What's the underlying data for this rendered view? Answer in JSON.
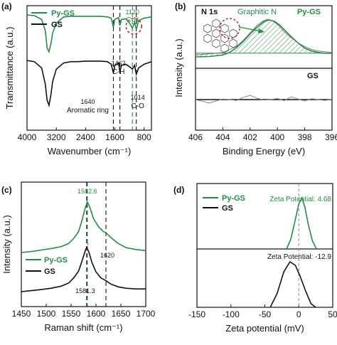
{
  "colors": {
    "pygs": "#2a8a4a",
    "gs": "#111111",
    "dashed_grey": "#6f6f6f",
    "red_marker": "#b02a2a"
  },
  "chart_data": [
    {
      "id": "a",
      "panel_label": "(a)",
      "type": "line",
      "xlabel": "Wavenumber (cm⁻¹)",
      "ylabel": "Transmittance (a.u.)",
      "xlim": [
        4000,
        600
      ],
      "x_ticks": [
        4000,
        3200,
        2400,
        1600,
        800
      ],
      "x_tick_labels": [
        "4000",
        "3200",
        "2400",
        "1600",
        "800"
      ],
      "legend": [
        "Py-GS",
        "GS"
      ],
      "legend_position": "top-left",
      "series": [
        {
          "name": "Py-GS",
          "color": "#2a8a4a",
          "x": [
            4000,
            3800,
            3600,
            3500,
            3450,
            3400,
            3350,
            3300,
            3200,
            3000,
            2800,
            2600,
            2400,
            2200,
            2000,
            1800,
            1700,
            1640,
            1600,
            1500,
            1462,
            1420,
            1300,
            1200,
            1120,
            1060,
            1014,
            950,
            800,
            700,
            600
          ],
          "y": [
            9.25,
            9.2,
            8.9,
            8.0,
            6.6,
            6.3,
            6.9,
            7.8,
            8.6,
            9.1,
            9.15,
            9.15,
            9.15,
            9.15,
            9.15,
            9.1,
            9.0,
            8.3,
            8.9,
            9.05,
            8.4,
            8.9,
            8.95,
            8.6,
            8.2,
            8.7,
            8.1,
            8.8,
            9.0,
            9.05,
            9.1
          ]
        },
        {
          "name": "GS",
          "color": "#111111",
          "x": [
            4000,
            3800,
            3600,
            3500,
            3450,
            3400,
            3350,
            3300,
            3200,
            3000,
            2800,
            2600,
            2400,
            2200,
            2000,
            1800,
            1700,
            1640,
            1600,
            1500,
            1462,
            1420,
            1300,
            1200,
            1120,
            1060,
            1014,
            950,
            800,
            700,
            600
          ],
          "y": [
            5.6,
            5.5,
            5.0,
            3.7,
            2.4,
            2.0,
            2.8,
            3.9,
            4.9,
            5.4,
            5.5,
            5.5,
            5.55,
            5.55,
            5.55,
            5.5,
            5.3,
            4.6,
            5.2,
            5.4,
            4.7,
            5.2,
            5.3,
            5.1,
            4.9,
            5.2,
            4.5,
            5.0,
            5.3,
            5.4,
            5.5
          ]
        }
      ],
      "vlines": [
        {
          "x": 1640,
          "color": "#111111"
        },
        {
          "x": 1462,
          "color": "#111111"
        },
        {
          "x": 1120,
          "color": "#2a8a4a"
        },
        {
          "x": 1014,
          "color": "#111111"
        }
      ],
      "annotations": [
        {
          "text": "1120",
          "color": "#2a8a4a"
        },
        {
          "text": "C-N",
          "color": "#2a8a4a"
        },
        {
          "text": "1462",
          "color": "#111111"
        },
        {
          "text": "C-H",
          "color": "#111111"
        },
        {
          "text": "1640",
          "color": "#111111"
        },
        {
          "text": "Aromatic ring",
          "color": "#111111"
        },
        {
          "text": "1014",
          "color": "#111111"
        },
        {
          "text": "C-O",
          "color": "#111111"
        }
      ]
    },
    {
      "id": "b",
      "panel_label": "(b)",
      "type": "line",
      "xlabel": "Binding Energy (eV)",
      "ylabel": "Intensity (a.u.)",
      "xlim": [
        406,
        396
      ],
      "x_ticks": [
        406,
        404,
        402,
        400,
        398,
        396
      ],
      "x_tick_labels": [
        "406",
        "404",
        "402",
        "400",
        "398",
        "396"
      ],
      "top_label": "N 1s",
      "peak_label": "Graphitic N",
      "upper_series_label": "Py-GS",
      "lower_series_label": "GS",
      "series": [
        {
          "name": "Py-GS",
          "color": "#777777",
          "x": [
            406,
            405,
            404,
            403,
            402.5,
            402,
            401.5,
            401,
            400.7,
            400.4,
            400,
            399.5,
            399,
            398.5,
            398,
            397.5,
            397,
            396.5,
            396
          ],
          "y": [
            0.05,
            0.08,
            0.12,
            0.28,
            0.45,
            0.65,
            0.85,
            0.98,
            1.02,
            0.98,
            0.88,
            0.68,
            0.52,
            0.38,
            0.28,
            0.2,
            0.16,
            0.14,
            0.12
          ]
        },
        {
          "name": "Py-GS fit",
          "color": "#2a8a4a",
          "x": [
            406,
            405,
            404,
            403.5,
            403,
            402.5,
            402,
            401.5,
            401,
            400.6,
            400.2,
            399.8,
            399.4,
            399,
            398.5,
            398,
            397.5,
            397,
            396.5,
            396
          ],
          "y": [
            0.0,
            0.01,
            0.05,
            0.12,
            0.25,
            0.42,
            0.62,
            0.8,
            0.95,
            1.0,
            0.96,
            0.85,
            0.7,
            0.55,
            0.38,
            0.24,
            0.16,
            0.12,
            0.1,
            0.1
          ]
        },
        {
          "name": "GS",
          "color": "#888888",
          "x": [
            406,
            405.5,
            405,
            404.5,
            404,
            403.5,
            403,
            402.5,
            402,
            401.5,
            401,
            400.5,
            400,
            399.5,
            399,
            398.5,
            398,
            397.5,
            397,
            396.5,
            396
          ],
          "y": [
            0.0,
            -0.06,
            -0.12,
            -0.05,
            0.02,
            0.0,
            -0.03,
            0.08,
            0.15,
            0.05,
            -0.02,
            0.0,
            0.04,
            -0.04,
            0.1,
            0.02,
            -0.05,
            0.03,
            0.0,
            -0.03,
            0.02
          ]
        }
      ]
    },
    {
      "id": "c",
      "panel_label": "(c)",
      "type": "line",
      "xlabel": "Raman shift (cm⁻¹)",
      "ylabel": "Intensity (a.u.)",
      "xlim": [
        1450,
        1700
      ],
      "x_ticks": [
        1450,
        1500,
        1550,
        1600,
        1650,
        1700
      ],
      "x_tick_labels": [
        "1450",
        "1500",
        "1550",
        "1600",
        "1650",
        "1700"
      ],
      "legend": [
        "Py-GS",
        "GS"
      ],
      "legend_position": "bottom-left",
      "series": [
        {
          "name": "Py-GS",
          "color": "#2a8a4a",
          "x": [
            1450,
            1470,
            1490,
            1510,
            1530,
            1545,
            1555,
            1565,
            1572,
            1578,
            1582.6,
            1588,
            1595,
            1605,
            1615,
            1620,
            1630,
            1645,
            1660,
            1680,
            1700
          ],
          "y": [
            0.6,
            0.62,
            0.65,
            0.68,
            0.72,
            0.78,
            0.88,
            1.02,
            1.25,
            1.48,
            1.62,
            1.5,
            1.28,
            1.12,
            1.02,
            1.0,
            0.9,
            0.78,
            0.7,
            0.66,
            0.64
          ]
        },
        {
          "name": "GS",
          "color": "#111111",
          "x": [
            1450,
            1470,
            1490,
            1510,
            1530,
            1545,
            1555,
            1565,
            1572,
            1578,
            1581.3,
            1586,
            1592,
            1600,
            1610,
            1620,
            1630,
            1645,
            1660,
            1680,
            1700
          ],
          "y": [
            0.0,
            0.03,
            0.06,
            0.1,
            0.16,
            0.25,
            0.4,
            0.6,
            0.9,
            1.18,
            1.3,
            1.15,
            0.85,
            0.58,
            0.4,
            0.32,
            0.22,
            0.14,
            0.1,
            0.08,
            0.08
          ]
        }
      ],
      "vlines": [
        {
          "x": 1582.6,
          "color": "#2a8a4a"
        },
        {
          "x": 1581.3,
          "color": "#111111"
        },
        {
          "x": 1620,
          "color": "#111111"
        }
      ],
      "annotations": [
        {
          "text": "1582.6",
          "color": "#2a8a4a"
        },
        {
          "text": "1620",
          "color": "#111111"
        },
        {
          "text": "1581.3",
          "color": "#111111"
        }
      ]
    },
    {
      "id": "d",
      "panel_label": "(d)",
      "type": "line",
      "xlabel": "Zeta potential (mV)",
      "xlim": [
        -150,
        50
      ],
      "x_ticks": [
        -150,
        -100,
        -50,
        0,
        50
      ],
      "x_tick_labels": [
        "-150",
        "-100",
        "-50",
        "0",
        "50"
      ],
      "legend": [
        "Py-GS",
        "GS"
      ],
      "legend_position": "top-left",
      "series": [
        {
          "name": "Py-GS",
          "color": "#2a8a4a",
          "label": "Zeta Potential: 4.68",
          "x": [
            -18,
            -12,
            -6,
            0,
            4.68,
            9,
            14,
            20,
            26
          ],
          "y": [
            0.0,
            0.18,
            0.52,
            0.88,
            1.0,
            0.82,
            0.48,
            0.16,
            0.0
          ]
        },
        {
          "name": "GS",
          "color": "#111111",
          "label": "Zeta Potential: -12.9",
          "x": [
            -42,
            -32,
            -22,
            -12.9,
            -5,
            2,
            10,
            18,
            25
          ],
          "y": [
            0.0,
            0.3,
            0.78,
            1.0,
            0.92,
            0.68,
            0.36,
            0.08,
            0.0
          ]
        }
      ],
      "vlines": [
        {
          "x": 0,
          "color": "#888888"
        }
      ]
    }
  ]
}
